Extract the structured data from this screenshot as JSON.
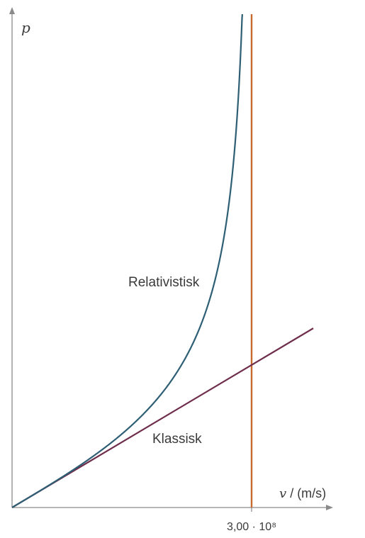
{
  "chart_data": {
    "type": "line",
    "ylabel": "p",
    "xlabel_symbol": "v",
    "xlabel_unit": "/ (m/s)",
    "c_tick_label": "3,00 · 10⁸",
    "c_value": 300000000.0,
    "xlim": [
      0,
      390000000.0
    ],
    "series": [
      {
        "name": "Relativistisk",
        "color": "#2f5f75",
        "formula": "gamma*m*v"
      },
      {
        "name": "Klassisk",
        "color": "#6e2e4c",
        "formula": "m*v"
      }
    ],
    "asymptote_color": "#c8692e",
    "axis_color": "#8a8a8a",
    "grid": false
  }
}
